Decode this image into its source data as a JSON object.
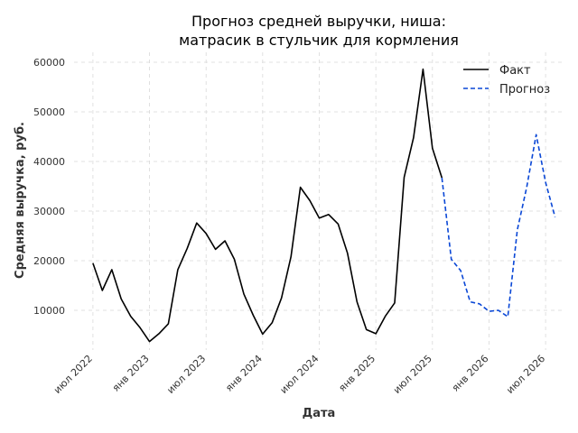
{
  "chart_data": {
    "type": "line",
    "title_lines": [
      "Прогноз средней выручки, ниша:",
      "матрасик в стульчик для кормления"
    ],
    "xlabel": "Дата",
    "ylabel": "Средняя выручка, руб.",
    "x_tick_labels": [
      "июл 2022",
      "янв 2023",
      "июл 2023",
      "янв 2024",
      "июл 2024",
      "янв 2025",
      "июл 2025",
      "янв 2026",
      "июл 2026"
    ],
    "x_tick_dates": [
      "2022-07",
      "2023-01",
      "2023-07",
      "2024-01",
      "2024-07",
      "2025-01",
      "2025-07",
      "2026-01",
      "2026-07"
    ],
    "y_ticks": [
      10000,
      20000,
      30000,
      40000,
      50000,
      60000
    ],
    "ylim": [
      2000,
      62000
    ],
    "xlim": [
      "2022-05",
      "2026-09"
    ],
    "grid": true,
    "legend_position": "top-right",
    "series": [
      {
        "name": "Факт",
        "style": "solid",
        "color": "#000000",
        "points": [
          {
            "x": "2022-07",
            "y": 19500
          },
          {
            "x": "2022-08",
            "y": 14000
          },
          {
            "x": "2022-09",
            "y": 18200
          },
          {
            "x": "2022-10",
            "y": 12300
          },
          {
            "x": "2022-11",
            "y": 8800
          },
          {
            "x": "2022-12",
            "y": 6500
          },
          {
            "x": "2023-01",
            "y": 3700
          },
          {
            "x": "2023-02",
            "y": 5300
          },
          {
            "x": "2023-03",
            "y": 7300
          },
          {
            "x": "2023-04",
            "y": 18200
          },
          {
            "x": "2023-05",
            "y": 22500
          },
          {
            "x": "2023-06",
            "y": 27600
          },
          {
            "x": "2023-07",
            "y": 25500
          },
          {
            "x": "2023-08",
            "y": 22300
          },
          {
            "x": "2023-09",
            "y": 24000
          },
          {
            "x": "2023-10",
            "y": 20300
          },
          {
            "x": "2023-11",
            "y": 13300
          },
          {
            "x": "2023-12",
            "y": 9000
          },
          {
            "x": "2024-01",
            "y": 5200
          },
          {
            "x": "2024-02",
            "y": 7500
          },
          {
            "x": "2024-03",
            "y": 12500
          },
          {
            "x": "2024-04",
            "y": 20800
          },
          {
            "x": "2024-05",
            "y": 34800
          },
          {
            "x": "2024-06",
            "y": 32100
          },
          {
            "x": "2024-07",
            "y": 28600
          },
          {
            "x": "2024-08",
            "y": 29300
          },
          {
            "x": "2024-09",
            "y": 27400
          },
          {
            "x": "2024-10",
            "y": 21500
          },
          {
            "x": "2024-11",
            "y": 11700
          },
          {
            "x": "2024-12",
            "y": 6100
          },
          {
            "x": "2025-01",
            "y": 5300
          },
          {
            "x": "2025-02",
            "y": 8800
          },
          {
            "x": "2025-03",
            "y": 11500
          },
          {
            "x": "2025-04",
            "y": 36800
          },
          {
            "x": "2025-05",
            "y": 44800
          },
          {
            "x": "2025-06",
            "y": 58600
          },
          {
            "x": "2025-07",
            "y": 42700
          },
          {
            "x": "2025-08",
            "y": 36700
          }
        ]
      },
      {
        "name": "Прогноз",
        "style": "dashed",
        "color": "#0a47d6",
        "points": [
          {
            "x": "2025-08",
            "y": 36700
          },
          {
            "x": "2025-09",
            "y": 20300
          },
          {
            "x": "2025-10",
            "y": 18000
          },
          {
            "x": "2025-11",
            "y": 11700
          },
          {
            "x": "2025-12",
            "y": 11300
          },
          {
            "x": "2026-01",
            "y": 9800
          },
          {
            "x": "2026-02",
            "y": 10000
          },
          {
            "x": "2026-03",
            "y": 8700
          },
          {
            "x": "2026-04",
            "y": 26200
          },
          {
            "x": "2026-05",
            "y": 34800
          },
          {
            "x": "2026-06",
            "y": 45400
          },
          {
            "x": "2026-07",
            "y": 35800
          },
          {
            "x": "2026-08",
            "y": 28800
          }
        ]
      }
    ]
  }
}
